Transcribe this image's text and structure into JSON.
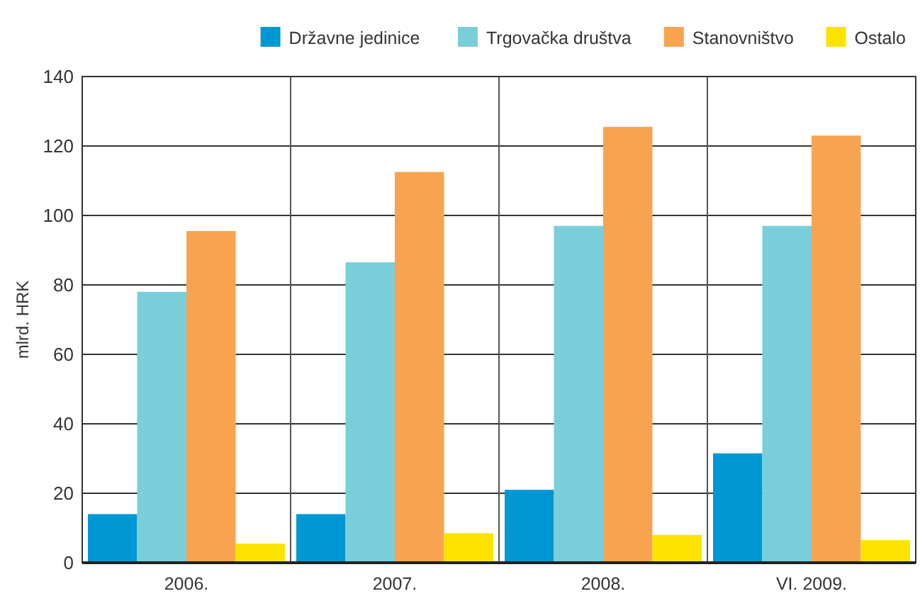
{
  "chart_data": {
    "type": "bar",
    "ylabel": "mlrd. HRK",
    "categories": [
      "2006.",
      "2007.",
      "2008.",
      "VI. 2009."
    ],
    "series": [
      {
        "name": "Državne jedinice",
        "color": "#0098d4",
        "values": [
          14,
          14,
          21,
          31.5
        ]
      },
      {
        "name": "Trgovačka društva",
        "color": "#79ced9",
        "values": [
          78,
          86.5,
          97,
          97
        ]
      },
      {
        "name": "Stanovništvo",
        "color": "#f8a34f",
        "values": [
          95.5,
          112.5,
          125.5,
          123
        ]
      },
      {
        "name": "Ostalo",
        "color": "#fde300",
        "values": [
          5.5,
          8.5,
          8,
          6.5
        ]
      }
    ],
    "ylim": [
      0,
      140
    ],
    "yticks": [
      0,
      20,
      40,
      60,
      80,
      100,
      120,
      140
    ],
    "grid": true,
    "legend": "top right"
  }
}
